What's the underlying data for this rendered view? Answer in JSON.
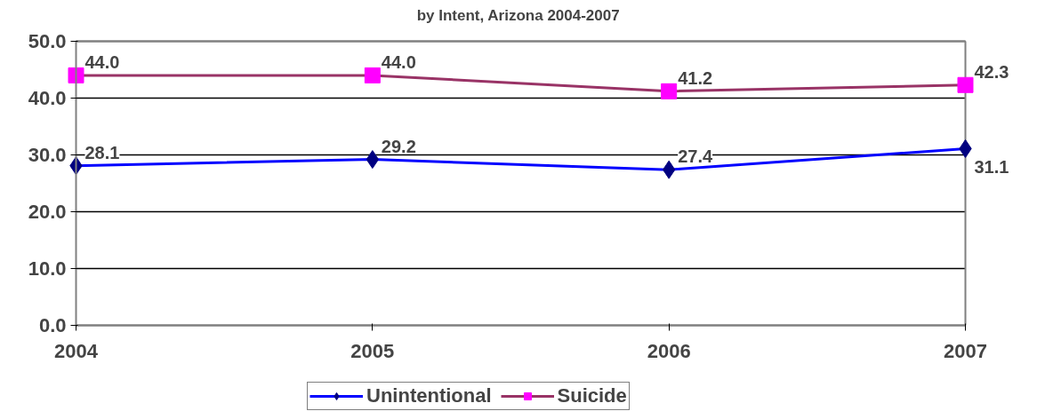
{
  "chart_data": {
    "type": "line",
    "title": "by Intent, Arizona 2004-2007",
    "x": [
      2004,
      2005,
      2006,
      2007
    ],
    "xlim": [
      2004,
      2007
    ],
    "xticks": [
      2004,
      2005,
      2006,
      2007
    ],
    "ylim": [
      0,
      50
    ],
    "yticks": [
      {
        "value": 0,
        "label": "0.0"
      },
      {
        "value": 10,
        "label": "10.0"
      },
      {
        "value": 20,
        "label": "20.0"
      },
      {
        "value": 30,
        "label": "30.0"
      },
      {
        "value": 40,
        "label": "40.0"
      },
      {
        "value": 50,
        "label": "50.0"
      }
    ],
    "series": [
      {
        "name": "Unintentional",
        "color": "#0000ff",
        "colors": [
          "#000080",
          "#000080",
          "#000080",
          "#000080"
        ],
        "marker": "diamond",
        "values": [
          28.1,
          29.2,
          27.4,
          31.1
        ],
        "value_labels": [
          "28.1",
          "29.2",
          "27.4",
          "31.1"
        ]
      },
      {
        "name": "Suicide",
        "color": "#993366",
        "colors": [
          "#ff00ff",
          "#ff00ff",
          "#ff00ff",
          "#ff00ff"
        ],
        "marker": "square",
        "values": [
          44.0,
          44.0,
          41.2,
          42.3
        ],
        "value_labels": [
          "44.0",
          "44.0",
          "41.2",
          "42.3"
        ]
      }
    ],
    "data_labels": true,
    "grid": "y",
    "legend": "bottom"
  }
}
